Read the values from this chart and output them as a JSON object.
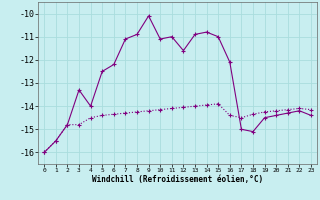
{
  "xlabel": "Windchill (Refroidissement éolien,°C)",
  "bg_color": "#c8eef0",
  "grid_color": "#aadddd",
  "line_color": "#800080",
  "line1_x": [
    0,
    1,
    2,
    3,
    4,
    5,
    6,
    7,
    8,
    9,
    10,
    11,
    12,
    13,
    14,
    15,
    16,
    17,
    18,
    19,
    20,
    21,
    22,
    23
  ],
  "line1_y": [
    -16.0,
    -15.5,
    -14.8,
    -14.8,
    -14.5,
    -14.4,
    -14.35,
    -14.3,
    -14.25,
    -14.2,
    -14.15,
    -14.1,
    -14.05,
    -14.0,
    -13.95,
    -13.9,
    -14.4,
    -14.5,
    -14.35,
    -14.25,
    -14.2,
    -14.15,
    -14.1,
    -14.15
  ],
  "line2_x": [
    0,
    1,
    2,
    3,
    4,
    5,
    6,
    7,
    8,
    9,
    10,
    11,
    12,
    13,
    14,
    15,
    16,
    17,
    18,
    19,
    20,
    21,
    22,
    23
  ],
  "line2_y": [
    -16.0,
    -15.5,
    -14.8,
    -13.3,
    -14.0,
    -12.5,
    -12.2,
    -11.1,
    -10.9,
    -10.1,
    -11.1,
    -11.0,
    -11.6,
    -10.9,
    -10.8,
    -11.0,
    -12.1,
    -15.0,
    -15.1,
    -14.5,
    -14.4,
    -14.3,
    -14.2,
    -14.4
  ],
  "ylim": [
    -16.5,
    -9.5
  ],
  "yticks": [
    -16,
    -15,
    -14,
    -13,
    -12,
    -11,
    -10
  ],
  "xticks": [
    0,
    1,
    2,
    3,
    4,
    5,
    6,
    7,
    8,
    9,
    10,
    11,
    12,
    13,
    14,
    15,
    16,
    17,
    18,
    19,
    20,
    21,
    22,
    23
  ]
}
